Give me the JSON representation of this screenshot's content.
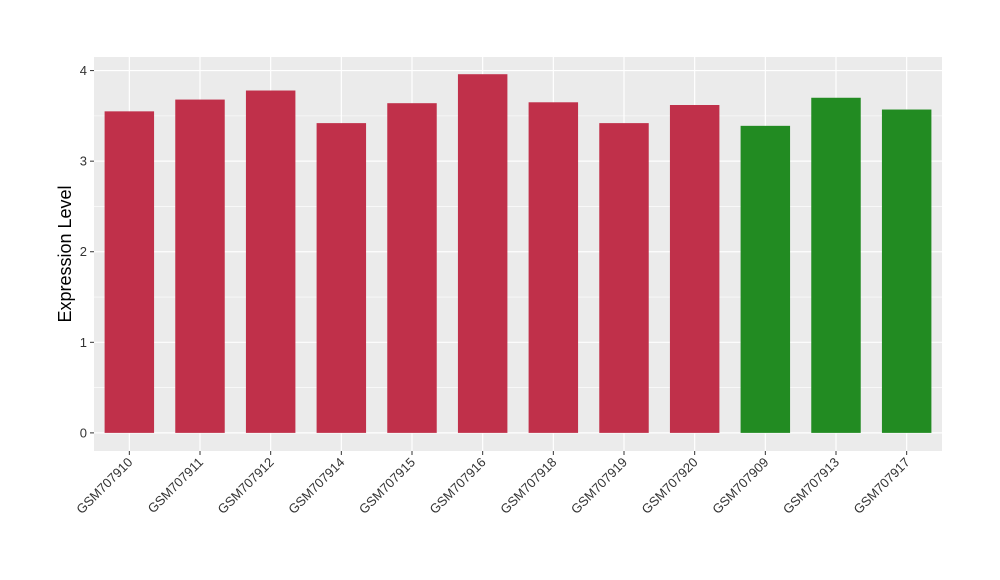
{
  "chart_data": {
    "type": "bar",
    "title": "",
    "xlabel": "",
    "ylabel": "Expression Level",
    "ylim": [
      -0.2,
      4.15
    ],
    "yticks": [
      0,
      1,
      2,
      3,
      4
    ],
    "grid": true,
    "legend": "none",
    "categories": [
      "GSM707910",
      "GSM707911",
      "GSM707912",
      "GSM707914",
      "GSM707915",
      "GSM707916",
      "GSM707918",
      "GSM707919",
      "GSM707920",
      "GSM707909",
      "GSM707913",
      "GSM707917"
    ],
    "values": [
      3.55,
      3.68,
      3.78,
      3.42,
      3.64,
      3.96,
      3.65,
      3.42,
      3.62,
      3.39,
      3.7,
      3.57
    ],
    "groups": [
      "a",
      "a",
      "a",
      "a",
      "a",
      "a",
      "a",
      "a",
      "a",
      "b",
      "b",
      "b"
    ],
    "group_colors": {
      "a": "#C0304A",
      "b": "#228B22"
    },
    "panel_color": "#EBEBEB",
    "grid_color": "#FFFFFF"
  }
}
